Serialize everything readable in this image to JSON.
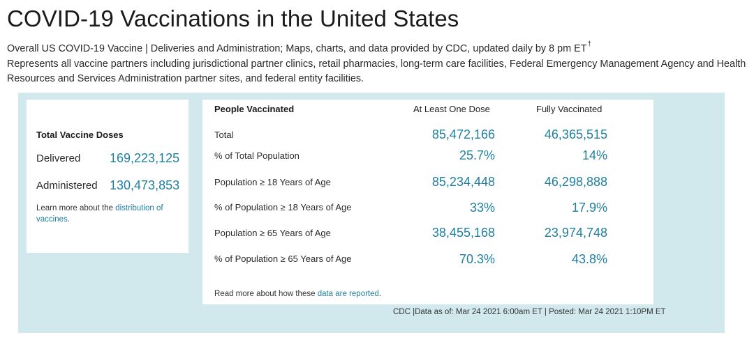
{
  "title": "COVID-19 Vaccinations in the United States",
  "subtitle": {
    "line1": "Overall US COVID-19 Vaccine | Deliveries and Administration; Maps, charts, and data provided by CDC, updated daily by 8 pm ET",
    "dagger": "†",
    "line2": "Represents all vaccine partners including jurisdictional partner clinics, retail pharmacies, long-term care facilities, Federal Emergency Management Agency and Health Resources and Services Administration partner sites, and federal entity facilities."
  },
  "total_doses": {
    "heading": "Total Vaccine Doses",
    "delivered_label": "Delivered",
    "delivered_value": "169,223,125",
    "administered_label": "Administered",
    "administered_value": "130,473,853",
    "note_prefix": "Learn more about the ",
    "note_link": "distribution of vaccines",
    "note_suffix": "."
  },
  "people_vaccinated": {
    "heading": "People Vaccinated",
    "col1": "At Least One Dose",
    "col2": "Fully Vaccinated",
    "rows": [
      {
        "label": "Total",
        "one_dose": "85,472,166",
        "fully": "46,365,515"
      },
      {
        "label": "% of Total Population",
        "one_dose": "25.7%",
        "fully": "14%"
      },
      {
        "label": "Population ≥ 18 Years of Age",
        "one_dose": "85,234,448",
        "fully": "46,298,888"
      },
      {
        "label": "% of Population ≥ 18 Years of Age",
        "one_dose": "33%",
        "fully": "17.9%"
      },
      {
        "label": "Population ≥ 65 Years of Age",
        "one_dose": "38,455,168",
        "fully": "23,974,748"
      },
      {
        "label": "% of Population ≥ 65 Years of Age",
        "one_dose": "70.3%",
        "fully": "43.8%"
      }
    ],
    "note_prefix": "Read more about how these ",
    "note_link": "data are reported",
    "note_suffix": "."
  },
  "footer": "CDC |Data as of: Mar 24 2021 6:00am ET | Posted: Mar 24 2021 1:10PM ET"
}
